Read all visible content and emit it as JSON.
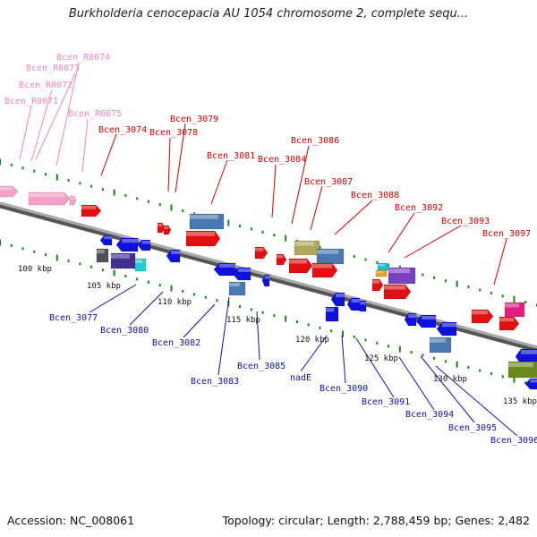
{
  "title": "Burkholderia cenocepacia AU 1054 chromosome 2, complete sequ...",
  "accession": "Accession: NC_008061",
  "topology": "Topology: circular; Length: 2,788,459 bp; Genes: 2,482",
  "colors": {
    "top_label": "#d40000",
    "bottom_label": "#1010aa",
    "rna_label": "#ee88bb",
    "tick": "#118811",
    "backbone": "#8a8a8a"
  },
  "kbp_ticks": [
    "100 kbp",
    "105 kbp",
    "110 kbp",
    "115 kbp",
    "120 kbp",
    "125 kbp",
    "130 kbp",
    "135 kbp"
  ],
  "top_labels": [
    "Bcen_R0074",
    "Bcen_R0073",
    "Bcen_R0072",
    "Bcen_R0071",
    "Bcen_R0075",
    "Bcen_3074",
    "Bcen_3079",
    "Bcen_3078",
    "Bcen_3081",
    "Bcen_3086",
    "Bcen_3084",
    "Bcen_3087",
    "Bcen_3088",
    "Bcen_3092",
    "Bcen_3093",
    "Bcen_3097"
  ],
  "bottom_labels": [
    "Bcen_3077",
    "Bcen_3080",
    "Bcen_3082",
    "Bcen_3083",
    "Bcen_3085",
    "nadE",
    "Bcen_3090",
    "Bcen_3091",
    "Bcen_3094",
    "Bcen_3095",
    "Bcen_3096"
  ]
}
